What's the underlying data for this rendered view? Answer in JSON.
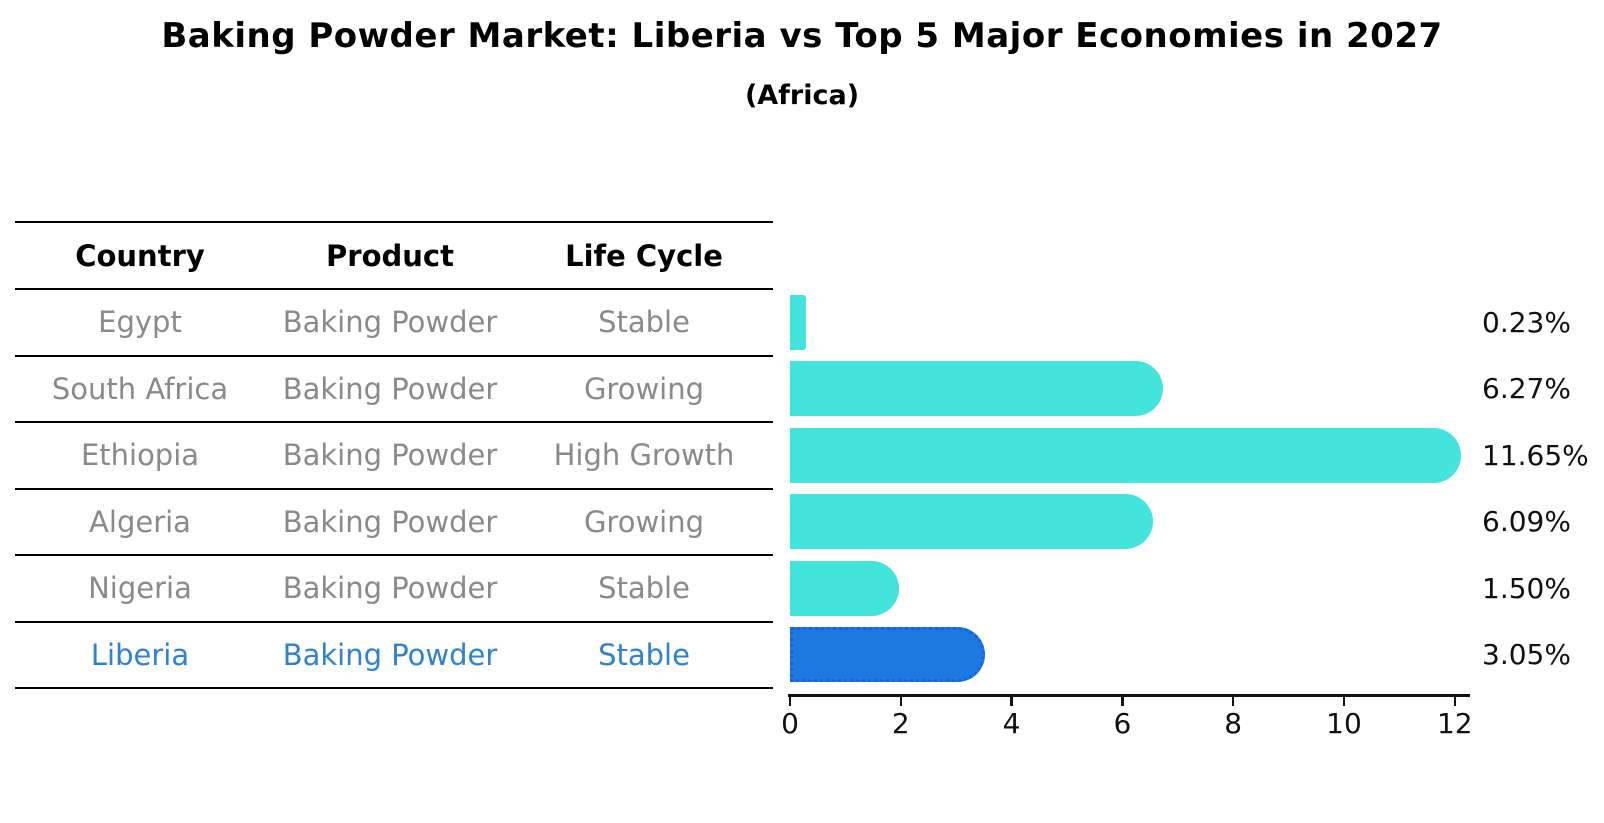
{
  "title": "Baking Powder Market: Liberia vs Top 5 Major Economies in 2027",
  "subtitle": "(Africa)",
  "table": {
    "headers": {
      "country": "Country",
      "product": "Product",
      "life_cycle": "Life Cycle"
    },
    "rows": [
      {
        "country": "Egypt",
        "product": "Baking Powder",
        "life_cycle": "Stable"
      },
      {
        "country": "South Africa",
        "product": "Baking Powder",
        "life_cycle": "Growing"
      },
      {
        "country": "Ethiopia",
        "product": "Baking Powder",
        "life_cycle": "High Growth"
      },
      {
        "country": "Algeria",
        "product": "Baking Powder",
        "life_cycle": "Growing"
      },
      {
        "country": "Nigeria",
        "product": "Baking Powder",
        "life_cycle": "Stable"
      },
      {
        "country": "Liberia",
        "product": "Baking Powder",
        "life_cycle": "Stable"
      }
    ]
  },
  "chart_data": {
    "type": "bar",
    "orientation": "horizontal",
    "title": "Baking Powder Market: Liberia vs Top 5 Major Economies in 2027",
    "subtitle": "(Africa)",
    "categories": [
      "Egypt",
      "South Africa",
      "Ethiopia",
      "Algeria",
      "Nigeria",
      "Liberia"
    ],
    "values": [
      0.23,
      6.27,
      11.65,
      6.09,
      1.5,
      3.05
    ],
    "bar_labels": [
      "0.23%",
      "6.27%",
      "11.65%",
      "6.09%",
      "1.50%",
      "3.05%"
    ],
    "highlight_category": "Liberia",
    "xlabel": "",
    "ylabel": "",
    "xlim": [
      0,
      12
    ],
    "x_ticks": [
      0,
      2,
      4,
      6,
      8,
      10,
      12
    ],
    "grid": false,
    "legend": "none",
    "colors": {
      "bar_default": "#42e4dc",
      "bar_highlight": "#1e78e2",
      "bar_highlight_border": "#1565d8",
      "highlight_text": "#2e82cf",
      "table_text": "#8a8a8a",
      "axis_text": "#111111"
    }
  }
}
